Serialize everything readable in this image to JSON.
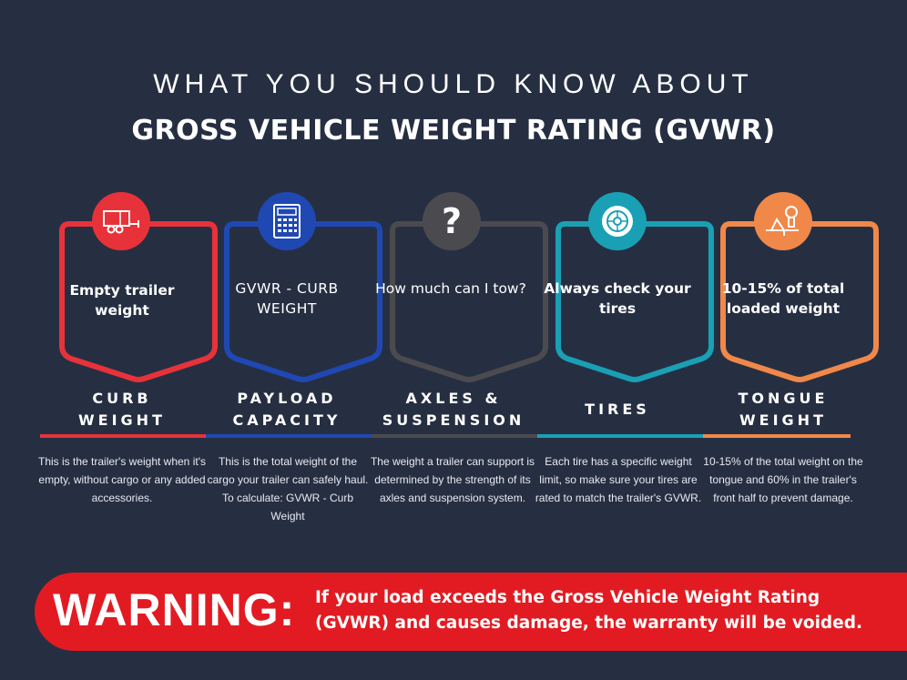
{
  "header": {
    "subtitle": "WHAT YOU SHOULD KNOW ABOUT",
    "title": "GROSS VEHICLE WEIGHT RATING (GVWR)"
  },
  "cards": [
    {
      "icon": "trailer-icon",
      "color": "#e8323a",
      "card_text": "Empty trailer weight",
      "label_line1": "CURB",
      "label_line2": "WEIGHT",
      "description": "This is the trailer's weight when it's empty, without cargo or any added accessories."
    },
    {
      "icon": "calculator-icon",
      "color": "#1f48b3",
      "card_text": "GVWR - CURB WEIGHT",
      "label_line1": "PAYLOAD",
      "label_line2": "CAPACITY",
      "description": "This is the total weight of the cargo your trailer can safely haul. To calculate: GVWR - Curb Weight"
    },
    {
      "icon": "question-icon",
      "color": "#4b4b4f",
      "card_text": "How much can I tow?",
      "label_line1": "AXLES &",
      "label_line2": "SUSPENSION",
      "description": "The weight a trailer can support is determined by the strength of its axles and suspension system."
    },
    {
      "icon": "tire-icon",
      "color": "#1aa0b4",
      "card_text": "Always check your tires",
      "label_line1": "TIRES",
      "label_line2": "",
      "description": "Each tire has a specific weight limit, so make sure your tires are rated to match the trailer's GVWR."
    },
    {
      "icon": "hitch-icon",
      "color": "#f0884a",
      "card_text": "10-15% of total loaded weight",
      "label_line1": "TONGUE",
      "label_line2": "WEIGHT",
      "description": "10-15% of the total weight on the tongue and 60% in the trailer's front half to prevent damage."
    }
  ],
  "warning": {
    "word": "WARNING:",
    "text": "If your load exceeds the Gross Vehicle Weight Rating (GVWR) and causes damage, the warranty will be voided."
  }
}
